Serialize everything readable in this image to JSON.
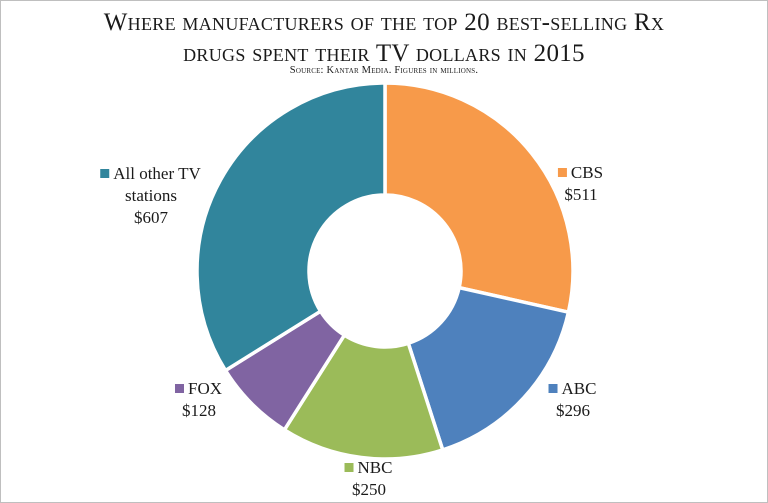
{
  "title_line1": "Where manufacturers of the top 20 best-selling Rx",
  "title_line2": "drugs spent their TV dollars in 2015",
  "subtitle": "Source: Kantar Media. Figures in millions.",
  "chart_data": {
    "type": "pie",
    "donut": true,
    "title": "Where manufacturers of the top 20 best-selling Rx drugs spent their TV dollars in 2015",
    "subtitle": "Source: Kantar Media. Figures in millions.",
    "slices": [
      {
        "name": "CBS",
        "value": 511,
        "label": "$511",
        "color": "#F79A4A"
      },
      {
        "name": "ABC",
        "value": 296,
        "label": "$296",
        "color": "#4E81BD"
      },
      {
        "name": "NBC",
        "value": 250,
        "label": "$250",
        "color": "#9BBB59"
      },
      {
        "name": "FOX",
        "value": 128,
        "label": "$128",
        "color": "#8064A2"
      },
      {
        "name": "All other TV stations",
        "name_lines": [
          "All other TV",
          "stations"
        ],
        "value": 607,
        "label": "$607",
        "color": "#31859C"
      }
    ],
    "legend": "labels next to slices"
  }
}
